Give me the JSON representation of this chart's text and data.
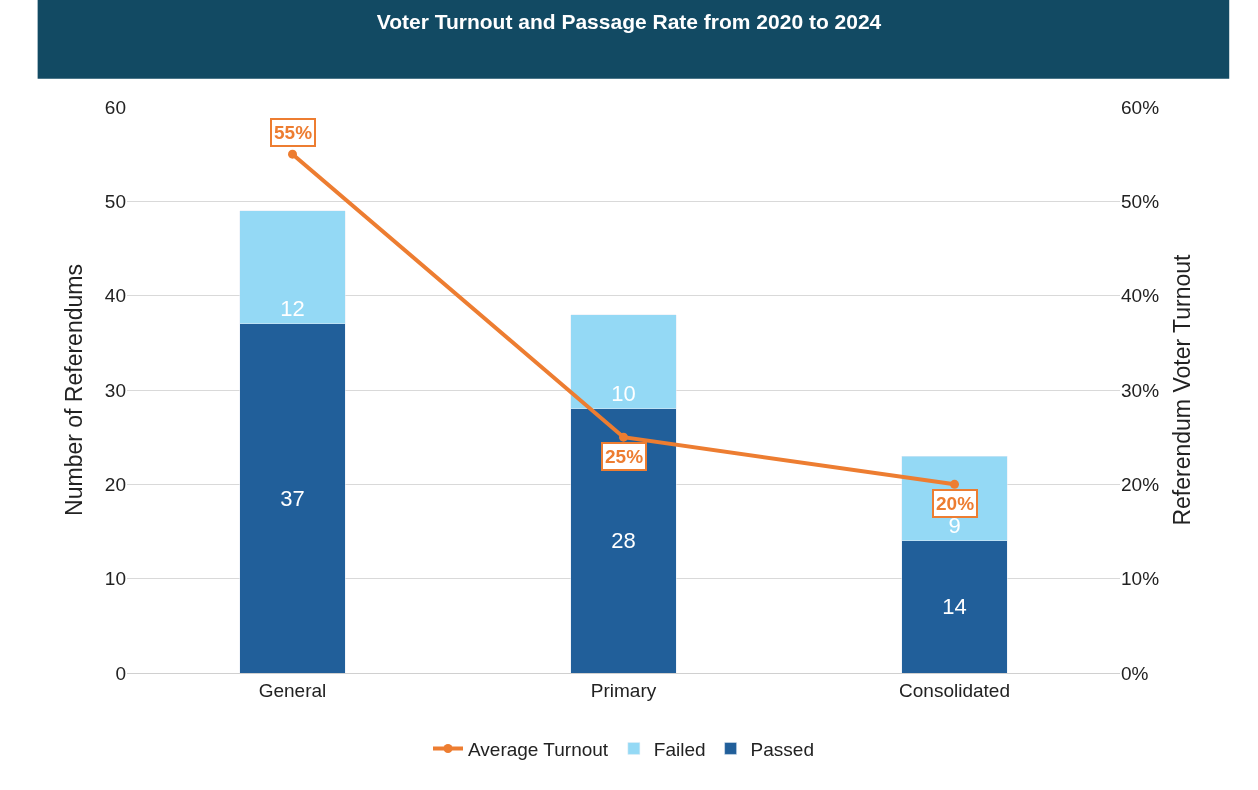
{
  "chart_data": {
    "type": "bar",
    "title": "Voter Turnout and Passage Rate from 2020 to 2024",
    "ylabel": "Number of Referendums",
    "y2label": "Referendum Voter Turnout",
    "categories": [
      "General",
      "Primary",
      "Consolidated"
    ],
    "stacked": true,
    "data_labels": true,
    "series": [
      {
        "name": "Passed",
        "color": "#215f9a",
        "values": [
          37,
          28,
          14
        ]
      },
      {
        "name": "Failed",
        "color": "#94d9f5",
        "values": [
          12,
          10,
          9
        ]
      },
      {
        "name": "Average Turnout",
        "type": "line",
        "axis": "y2",
        "color": "#ed7d31",
        "marker": "circle",
        "values": [
          55,
          25,
          20
        ],
        "value_labels": [
          "55%",
          "25%",
          "20%"
        ]
      }
    ],
    "ylim": [
      0,
      60
    ],
    "yticks": [
      0,
      10,
      20,
      30,
      40,
      50,
      60
    ],
    "y2lim": [
      0,
      60
    ],
    "y2ticks": [
      {
        "value": 0,
        "label": "0%"
      },
      {
        "value": 10,
        "label": "10%"
      },
      {
        "value": 20,
        "label": "20%"
      },
      {
        "value": 30,
        "label": "30%"
      },
      {
        "value": 40,
        "label": "40%"
      },
      {
        "value": 50,
        "label": "50%"
      },
      {
        "value": 60,
        "label": "60%"
      }
    ],
    "grid": "y",
    "legend": "bottom"
  }
}
